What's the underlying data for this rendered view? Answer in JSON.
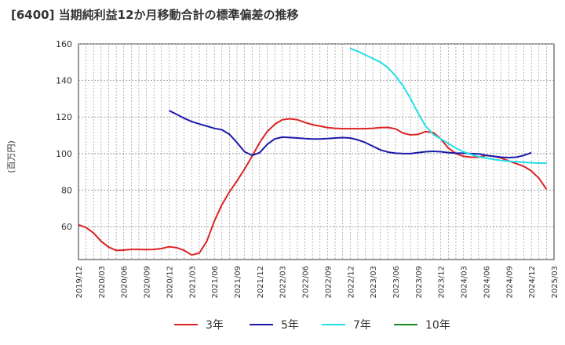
{
  "chart_data": {
    "type": "line",
    "title": "[6400]  当期純利益12か月移動合計の標準偏差の推移",
    "ylabel": "(百万円)",
    "xlabel": "",
    "ylim": [
      42,
      160
    ],
    "yticks": [
      60,
      80,
      100,
      120,
      140,
      160
    ],
    "xticks": [
      "2019/12",
      "2020/03",
      "2020/06",
      "2020/09",
      "2020/12",
      "2021/03",
      "2021/06",
      "2021/09",
      "2021/12",
      "2022/03",
      "2022/06",
      "2022/09",
      "2022/12",
      "2023/03",
      "2023/06",
      "2023/09",
      "2023/12",
      "2024/03",
      "2024/06",
      "2024/09",
      "2024/12",
      "2025/03"
    ],
    "grid": true,
    "legend_position": "bottom",
    "series": [
      {
        "name": "3年",
        "color": "#dd2222",
        "start_index": 0,
        "values": [
          61,
          59.5,
          56.5,
          52,
          48.8,
          47,
          47.2,
          47.5,
          47.5,
          47.4,
          47.5,
          48,
          49,
          48.5,
          47,
          44.5,
          45.5,
          52,
          63,
          72,
          79,
          85,
          91.5,
          98.5,
          106,
          112,
          116,
          118.5,
          119,
          118.5,
          117,
          115.8,
          115,
          114.2,
          113.8,
          113.6,
          113.6,
          113.6,
          113.6,
          113.8,
          114.2,
          114.3,
          113.5,
          111.2,
          110.2,
          110.5,
          112,
          111.5,
          108,
          103,
          100,
          98.5,
          98,
          98,
          99,
          98.5,
          97.5,
          96,
          94.5,
          93,
          90.5,
          86.5,
          80.5
        ]
      },
      {
        "name": "5年",
        "color": "#1a1aaa",
        "start_index": 12,
        "values": [
          123.5,
          121.5,
          119.3,
          117.5,
          116.2,
          115,
          113.8,
          113,
          110.5,
          106,
          101,
          99,
          100.5,
          105,
          108,
          109,
          108.8,
          108.5,
          108.2,
          108,
          108,
          108.2,
          108.5,
          108.7,
          108.5,
          107.5,
          106,
          104,
          102,
          100.8,
          100.2,
          100,
          100,
          100.5,
          101,
          101.2,
          101,
          100.5,
          100.2,
          100.2,
          100,
          99.8,
          99,
          98.5,
          98,
          97.8,
          98,
          99,
          100.5
        ]
      },
      {
        "name": "7年",
        "color": "#22e0e8",
        "start_index": 36,
        "values": [
          157.5,
          156,
          154,
          152,
          150,
          147,
          142.5,
          137,
          130,
          122,
          115,
          110.5,
          108,
          105.5,
          103,
          101,
          99.5,
          98.3,
          97.5,
          96.8,
          96.2,
          95.8,
          95.5,
          95.2,
          95,
          94.8,
          94.8
        ]
      },
      {
        "name": "10年",
        "color": "#228822",
        "start_index": 0,
        "values": []
      }
    ]
  }
}
